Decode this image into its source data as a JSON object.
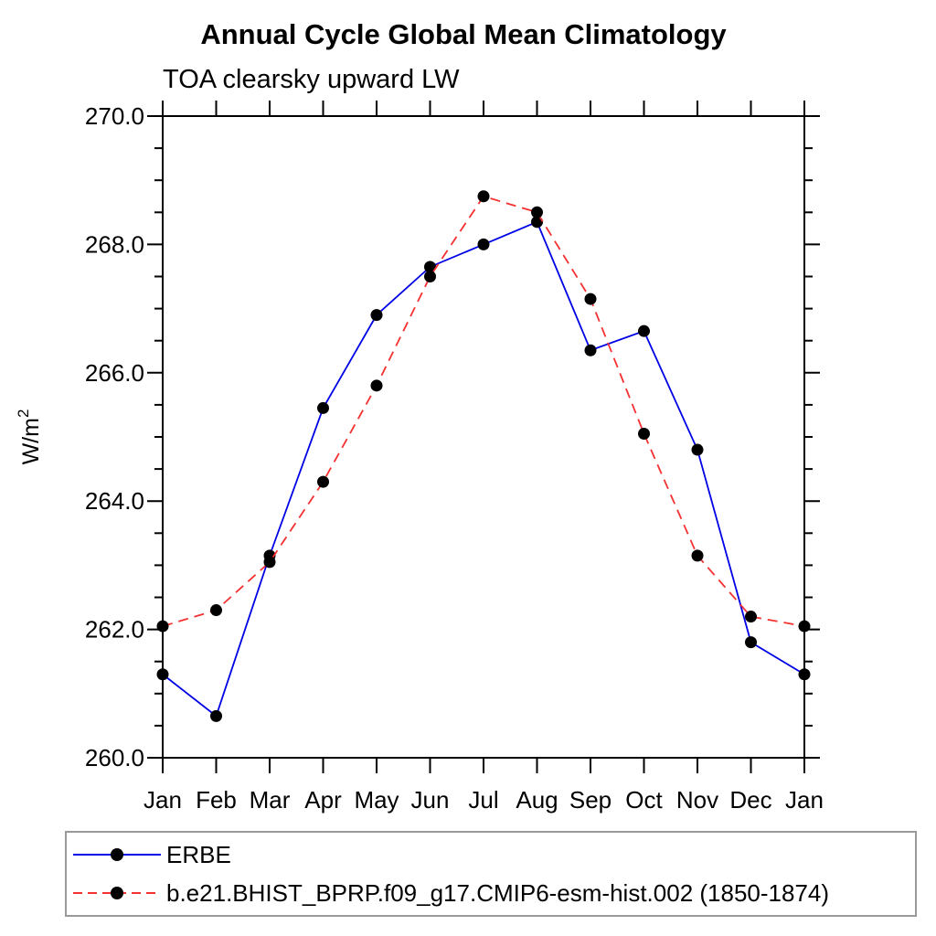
{
  "chart_data": {
    "type": "line",
    "title": "Annual Cycle Global Mean Climatology",
    "subtitle": "TOA clearsky upward LW",
    "ylabel": "W/m²",
    "xlabel": "",
    "categories": [
      "Jan",
      "Feb",
      "Mar",
      "Apr",
      "May",
      "Jun",
      "Jul",
      "Aug",
      "Sep",
      "Oct",
      "Nov",
      "Dec",
      "Jan"
    ],
    "ylim": [
      260.0,
      270.0
    ],
    "ytick_values": [
      260.0,
      262.0,
      264.0,
      266.0,
      268.0,
      270.0
    ],
    "ytick_labels": [
      "260.0",
      "262.0",
      "264.0",
      "266.0",
      "268.0",
      "270.0"
    ],
    "ytick_minor_step": 0.5,
    "grid": false,
    "legend_position": "bottom",
    "series": [
      {
        "name": "ERBE",
        "color": "#0000e6",
        "line_style": "solid",
        "marker": "filled-circle",
        "marker_color": "#000000",
        "values": [
          261.3,
          260.65,
          263.15,
          265.45,
          266.9,
          267.65,
          268.0,
          268.35,
          266.35,
          266.65,
          264.8,
          261.8,
          261.3
        ]
      },
      {
        "name": "b.e21.BHIST_BPRP.f09_g17.CMIP6-esm-hist.002 (1850-1874)",
        "color": "#f53030",
        "line_style": "dashed",
        "marker": "filled-circle",
        "marker_color": "#000000",
        "values": [
          262.05,
          262.3,
          263.05,
          264.3,
          265.8,
          267.5,
          268.75,
          268.5,
          267.15,
          265.05,
          263.15,
          262.2,
          262.05
        ]
      }
    ]
  },
  "colors": {
    "axis": "#000000",
    "text": "#000000",
    "legend_border": "#999999",
    "background": "#ffffff"
  }
}
